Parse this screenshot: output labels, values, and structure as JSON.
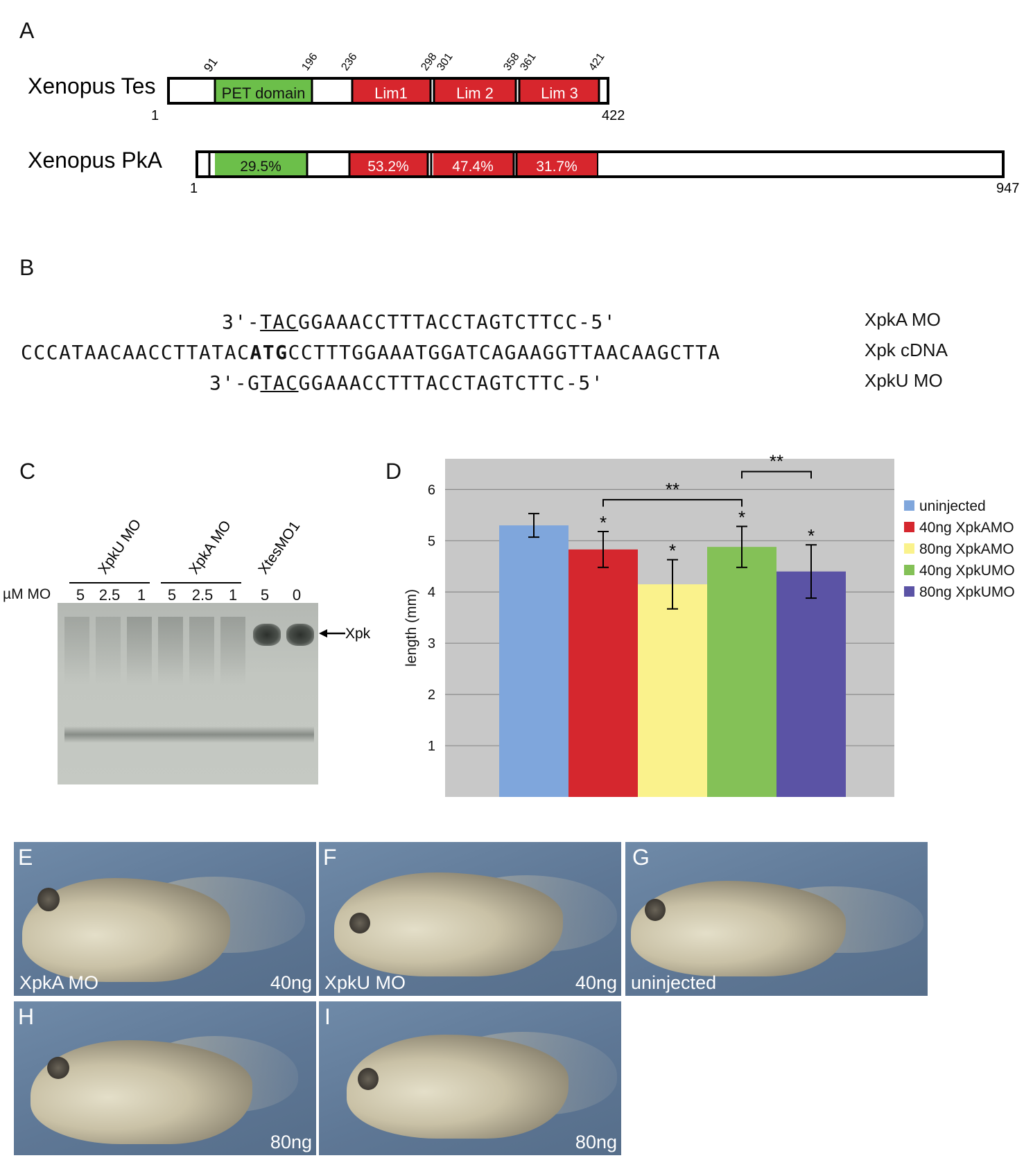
{
  "panels": {
    "A": "A",
    "B": "B",
    "C": "C",
    "D": "D",
    "E": "E",
    "F": "F",
    "G": "G",
    "H": "H",
    "I": "I"
  },
  "panelA": {
    "tes": {
      "name": "Xenopus Tes",
      "start": "1",
      "end": "422",
      "positions": [
        "91",
        "196",
        "236",
        "298",
        "301",
        "358",
        "361",
        "421"
      ],
      "domains": [
        "PET domain",
        "Lim1",
        "Lim 2",
        "Lim 3"
      ]
    },
    "pka": {
      "name": "Xenopus PkA",
      "start": "1",
      "end": "947",
      "domains": [
        "29.5%",
        "53.2%",
        "47.4%",
        "31.7%"
      ]
    },
    "colors": {
      "pet": "#6cbf4a",
      "lim": "#d7262d"
    }
  },
  "panelB": {
    "xpka_mo": {
      "pre": "3'-",
      "underline": "TAC",
      "rest": "GGAAACCTTTACCTAGTCTTCC-5'",
      "label": "XpkA MO"
    },
    "cdna": {
      "pre": "CCCATAACAACCTTATAC",
      "bold": "ATG",
      "rest": "CCTTTGGAAATGGATCAGAAGGTTAACAAGCTTA",
      "label": "Xpk cDNA"
    },
    "xpku_mo": {
      "pre": "3'-G",
      "underline": "TAC",
      "rest": "GGAAACCTTTACCTAGTCTTC-5'",
      "label": "XpkU MO"
    }
  },
  "panelC": {
    "groups": [
      "XpkU MO",
      "XpkA MO",
      "XtesMO1"
    ],
    "conc_label": "µM MO",
    "lanes": [
      "5",
      "2.5",
      "1",
      "5",
      "2.5",
      "1",
      "5",
      "0"
    ],
    "band_label": "Xpk"
  },
  "chart_data": {
    "type": "bar",
    "ylabel": "length (mm)",
    "yticks": [
      "1",
      "2",
      "3",
      "4",
      "5",
      "6"
    ],
    "ylim": [
      0,
      6.6
    ],
    "grid": true,
    "legend_position": "right",
    "series": [
      {
        "name": "uninjected",
        "value": 5.3,
        "error": 0.23,
        "color": "#7fa6dc",
        "star": ""
      },
      {
        "name": "40ng XpkAMO",
        "value": 4.83,
        "error": 0.35,
        "color": "#d5272e",
        "star": "*"
      },
      {
        "name": "80ng XpkAMO",
        "value": 4.15,
        "error": 0.48,
        "color": "#faf28c",
        "star": "*"
      },
      {
        "name": "40ng XpkUMO",
        "value": 4.88,
        "error": 0.4,
        "color": "#84c157",
        "star": "*"
      },
      {
        "name": "80ng XpkUMO",
        "value": 4.4,
        "error": 0.52,
        "color": "#5b53a5",
        "star": "*"
      }
    ],
    "brackets": [
      {
        "from": 1,
        "to": 3,
        "label": "**",
        "level": 5.8
      },
      {
        "from": 3,
        "to": 4,
        "label": "**",
        "level": 6.35
      }
    ]
  },
  "photos": {
    "E": {
      "left": "XpkA MO",
      "right": "40ng"
    },
    "F": {
      "left": "XpkU MO",
      "right": "40ng"
    },
    "G": {
      "left": "uninjected",
      "right": ""
    },
    "H": {
      "left": "",
      "right": "80ng"
    },
    "I": {
      "left": "",
      "right": "80ng"
    }
  }
}
